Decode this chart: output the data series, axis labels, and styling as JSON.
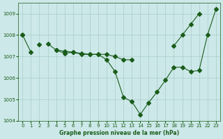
{
  "x": [
    0,
    1,
    2,
    3,
    4,
    5,
    6,
    7,
    8,
    9,
    10,
    11,
    12,
    13,
    14,
    15,
    16,
    17,
    18,
    19,
    20,
    21,
    22,
    23
  ],
  "line1": [
    1008.0,
    1007.2,
    null,
    1007.6,
    1007.3,
    1007.15,
    1007.2,
    1007.1,
    1007.1,
    1007.1,
    1007.1,
    1007.0,
    1006.85,
    1006.85,
    null,
    null,
    null,
    null,
    null,
    null,
    null,
    null,
    null,
    null
  ],
  "line2": [
    null,
    null,
    1007.55,
    null,
    1007.3,
    1007.25,
    1007.2,
    1007.15,
    1007.1,
    1007.1,
    1006.85,
    1006.3,
    1005.1,
    1004.9,
    1004.3,
    1004.85,
    1005.35,
    1005.9,
    1006.5,
    1006.5,
    1006.3,
    1006.35,
    1008.0,
    1009.2
  ],
  "line3": [
    1008.0,
    null,
    null,
    null,
    null,
    null,
    null,
    null,
    null,
    null,
    null,
    null,
    null,
    null,
    null,
    null,
    null,
    null,
    1007.5,
    1008.0,
    1008.5,
    1009.0,
    null,
    null
  ],
  "ylim": [
    1004.0,
    1009.5
  ],
  "xlim": [
    -0.5,
    23.5
  ],
  "yticks": [
    1004,
    1005,
    1006,
    1007,
    1008,
    1009
  ],
  "xticks": [
    0,
    1,
    2,
    3,
    4,
    5,
    6,
    7,
    8,
    9,
    10,
    11,
    12,
    13,
    14,
    15,
    16,
    17,
    18,
    19,
    20,
    21,
    22,
    23
  ],
  "xlabel": "Graphe pression niveau de la mer (hPa)",
  "bg_color": "#cce8e8",
  "line_color": "#1a5c1a",
  "grid_color": "#aacccc",
  "marker": "D",
  "marker_size": 3
}
